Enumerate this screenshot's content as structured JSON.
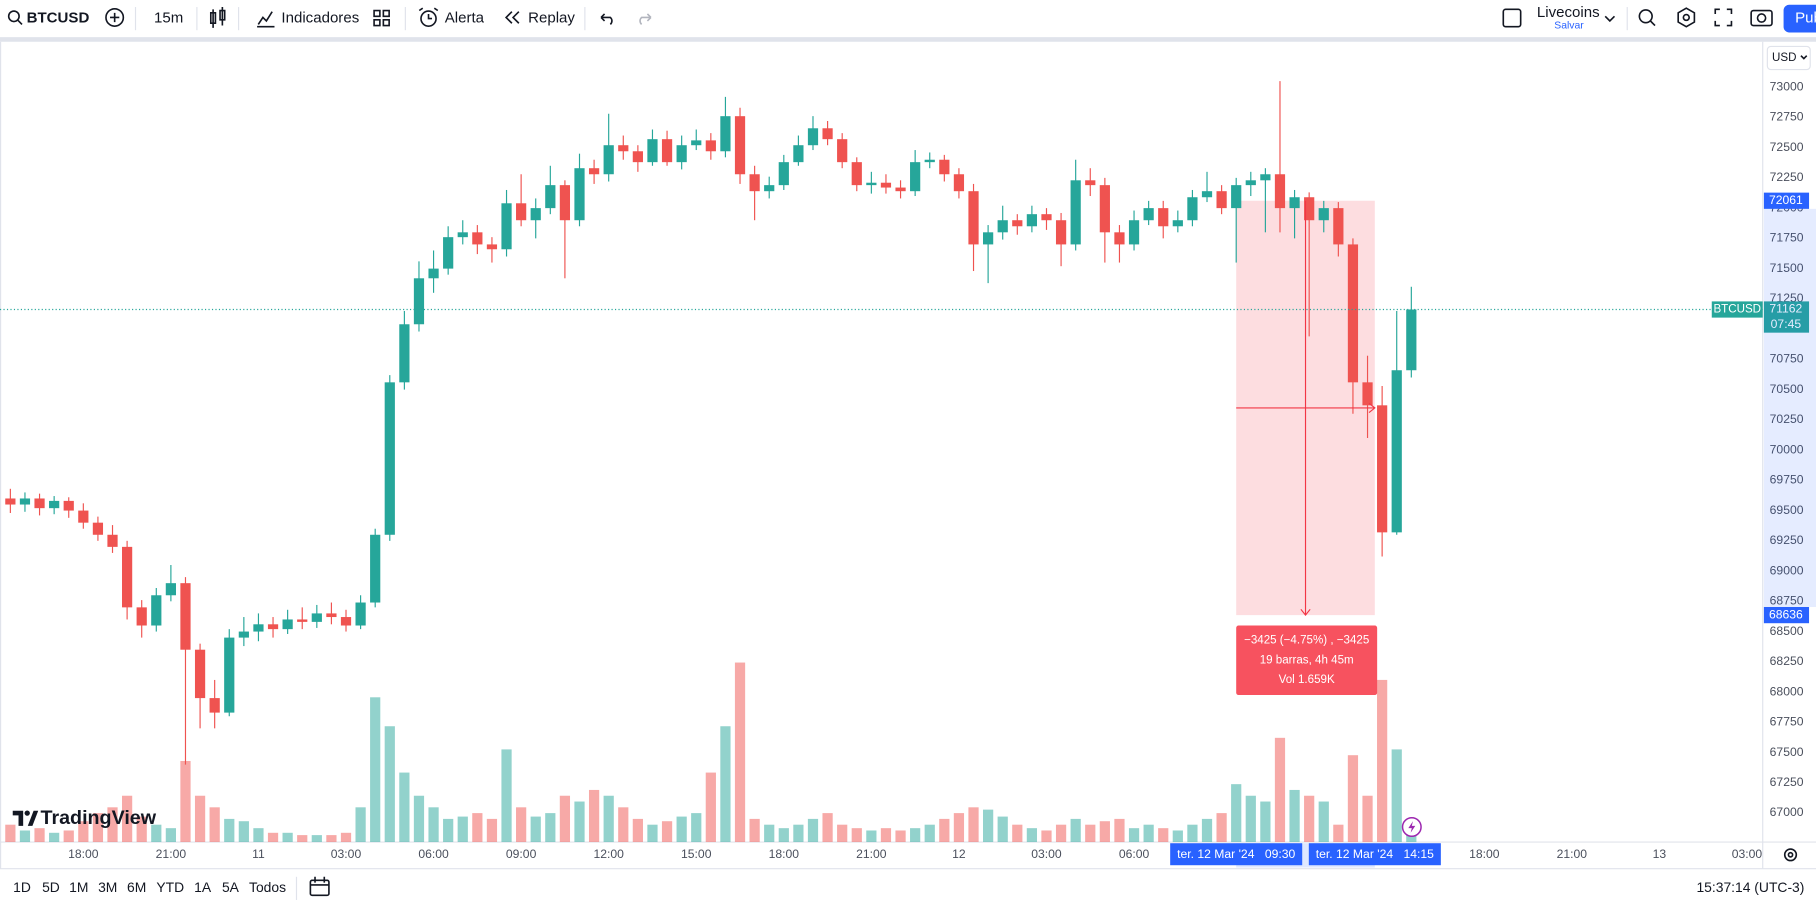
{
  "toolbar": {
    "symbol": "BTCUSD",
    "interval": "15m",
    "indicators": "Indicadores",
    "alert": "Alerta",
    "replay": "Replay",
    "layout_name": "Livecoins",
    "layout_status": "Salvar",
    "publish": "Pub"
  },
  "bottom_bar": {
    "ranges": [
      "1D",
      "5D",
      "1M",
      "3M",
      "6M",
      "YTD",
      "1A",
      "5A",
      "Todos"
    ],
    "clock": "15:37:14 (UTC-3)"
  },
  "currency": "USD",
  "logo": "TradingView",
  "chart_data": {
    "type": "candlestick",
    "symbol": "BTCUSD",
    "countdown": "07:45",
    "up_color": "#26a69a",
    "down_color": "#ef5350",
    "grid": false,
    "xlim": [
      -0.71,
      120.08
    ],
    "ylim": [
      66760,
      73375
    ],
    "volume_ylim": [
      0,
      250
    ],
    "yticks": [
      67000,
      67250,
      67500,
      67750,
      68000,
      68250,
      68500,
      68750,
      69000,
      69250,
      69500,
      69750,
      70000,
      70250,
      70500,
      70750,
      71000,
      71250,
      71500,
      71750,
      72000,
      72250,
      72500,
      72750,
      73000
    ],
    "xticks": [
      {
        "value": 5,
        "label": "18:00"
      },
      {
        "value": 11,
        "label": "21:00"
      },
      {
        "value": 17,
        "label": "11"
      },
      {
        "value": 23,
        "label": "03:00"
      },
      {
        "value": 29,
        "label": "06:00"
      },
      {
        "value": 35,
        "label": "09:00"
      },
      {
        "value": 41,
        "label": "12:00"
      },
      {
        "value": 47,
        "label": "15:00"
      },
      {
        "value": 53,
        "label": "18:00"
      },
      {
        "value": 59,
        "label": "21:00"
      },
      {
        "value": 65,
        "label": "12"
      },
      {
        "value": 71,
        "label": "03:00"
      },
      {
        "value": 77,
        "label": "06:00"
      },
      {
        "value": 101,
        "label": "18:00"
      },
      {
        "value": 107,
        "label": "21:00"
      },
      {
        "value": 113,
        "label": "13"
      },
      {
        "value": 119,
        "label": "03:00"
      }
    ],
    "open": [
      69600,
      69550,
      69600,
      69520,
      69580,
      69500,
      69400,
      69300,
      69200,
      68700,
      68550,
      68800,
      68900,
      68350,
      67950,
      67830,
      68450,
      68500,
      68560,
      68520,
      68600,
      68580,
      68650,
      68620,
      68550,
      68740,
      69300,
      70560,
      71040,
      71420,
      71500,
      71760,
      71800,
      71700,
      71660,
      72040,
      71900,
      72000,
      72190,
      71900,
      72330,
      72280,
      72520,
      72470,
      72380,
      72570,
      72380,
      72520,
      72560,
      72470,
      72760,
      72280,
      72140,
      72190,
      72380,
      72520,
      72660,
      72570,
      72380,
      72190,
      72210,
      72170,
      72140,
      72380,
      72400,
      72280,
      72140,
      71700,
      71800,
      71900,
      71850,
      71950,
      71900,
      71700,
      72230,
      72190,
      71800,
      71700,
      71900,
      72000,
      71850,
      71900,
      72090,
      72140,
      72000,
      72190,
      72230,
      72280,
      72000,
      72090,
      71900,
      72000,
      71700,
      70560,
      70370,
      69320,
      70660
    ],
    "high": [
      69680,
      69650,
      69640,
      69620,
      69610,
      69560,
      69450,
      69380,
      69250,
      68760,
      68860,
      69050,
      68950,
      68400,
      68100,
      68520,
      68620,
      68650,
      68620,
      68680,
      68700,
      68720,
      68740,
      68680,
      68800,
      69350,
      70620,
      71150,
      71560,
      71650,
      71850,
      71900,
      71860,
      71760,
      72150,
      72280,
      72080,
      72350,
      72230,
      72450,
      72400,
      72780,
      72600,
      72520,
      72650,
      72640,
      72600,
      72650,
      72620,
      72920,
      72830,
      72350,
      72260,
      72440,
      72600,
      72760,
      72720,
      72620,
      72420,
      72300,
      72280,
      72230,
      72480,
      72460,
      72440,
      72330,
      72200,
      71860,
      72020,
      71950,
      72020,
      72000,
      71960,
      72400,
      72330,
      72250,
      71860,
      71980,
      72060,
      72060,
      71980,
      72150,
      72300,
      72190,
      72250,
      72300,
      72330,
      73050,
      72150,
      72130,
      72060,
      72050,
      71750,
      70780,
      70530,
      71150,
      71350
    ],
    "low": [
      69480,
      69490,
      69460,
      69470,
      69440,
      69350,
      69250,
      69150,
      68600,
      68450,
      68500,
      68750,
      67400,
      67700,
      67700,
      67800,
      68380,
      68420,
      68450,
      68480,
      68520,
      68530,
      68560,
      68500,
      68520,
      68700,
      69250,
      70500,
      70980,
      71300,
      71450,
      71700,
      71620,
      71550,
      71600,
      71850,
      71750,
      71950,
      71420,
      71850,
      72200,
      72220,
      72400,
      72300,
      72350,
      72350,
      72320,
      72480,
      72400,
      72420,
      72200,
      71900,
      72080,
      72150,
      72350,
      72480,
      72520,
      72330,
      72140,
      72120,
      72120,
      72080,
      72100,
      72330,
      72220,
      72080,
      71480,
      71380,
      71740,
      71780,
      71800,
      71820,
      71520,
      71650,
      72100,
      71550,
      71550,
      71650,
      71860,
      71750,
      71800,
      71850,
      72050,
      71950,
      71550,
      72100,
      71800,
      71800,
      71750,
      70940,
      71800,
      71600,
      70300,
      70100,
      69120,
      69300,
      70600
    ],
    "close": [
      69550,
      69600,
      69520,
      69580,
      69500,
      69400,
      69300,
      69200,
      68700,
      68550,
      68800,
      68900,
      68350,
      67950,
      67830,
      68450,
      68500,
      68560,
      68520,
      68600,
      68580,
      68650,
      68620,
      68550,
      68740,
      69300,
      70560,
      71040,
      71420,
      71500,
      71760,
      71800,
      71700,
      71660,
      72040,
      71900,
      72000,
      72190,
      71900,
      72330,
      72280,
      72520,
      72470,
      72380,
      72570,
      72380,
      72520,
      72560,
      72470,
      72760,
      72280,
      72140,
      72190,
      72380,
      72520,
      72660,
      72570,
      72380,
      72190,
      72210,
      72170,
      72140,
      72380,
      72400,
      72280,
      72140,
      71700,
      71800,
      71900,
      71850,
      71950,
      71900,
      71700,
      72230,
      72190,
      71800,
      71700,
      71900,
      72000,
      71850,
      71900,
      72090,
      72140,
      72000,
      72190,
      72230,
      72280,
      72000,
      72090,
      71900,
      72000,
      71700,
      70560,
      70370,
      69320,
      70660,
      71162
    ],
    "volume": [
      15,
      10,
      12,
      8,
      10,
      18,
      25,
      30,
      40,
      22,
      15,
      12,
      70,
      40,
      30,
      20,
      18,
      12,
      8,
      8,
      6,
      6,
      6,
      8,
      30,
      125,
      100,
      60,
      40,
      30,
      20,
      22,
      25,
      20,
      80,
      30,
      22,
      25,
      40,
      35,
      45,
      40,
      30,
      20,
      15,
      18,
      22,
      25,
      60,
      100,
      155,
      20,
      15,
      12,
      15,
      20,
      25,
      15,
      12,
      10,
      12,
      10,
      12,
      15,
      20,
      25,
      30,
      28,
      22,
      15,
      12,
      10,
      15,
      20,
      15,
      18,
      20,
      12,
      15,
      12,
      10,
      15,
      20,
      25,
      50,
      40,
      35,
      90,
      45,
      40,
      35,
      15,
      75,
      40,
      140,
      80,
      20
    ],
    "measure": {
      "from_index": 84,
      "to_index": 93.5,
      "top": 72061,
      "bottom": 68636,
      "from_date": "ter. 12 Mar '24",
      "from_time": "09:30",
      "to_date": "ter. 12 Mar '24",
      "to_time": "14:15",
      "label_lines": [
        "−3425 (−4.75%) , −3425",
        "19 barras, 4h 45m",
        "Vol 1.659K"
      ]
    }
  }
}
